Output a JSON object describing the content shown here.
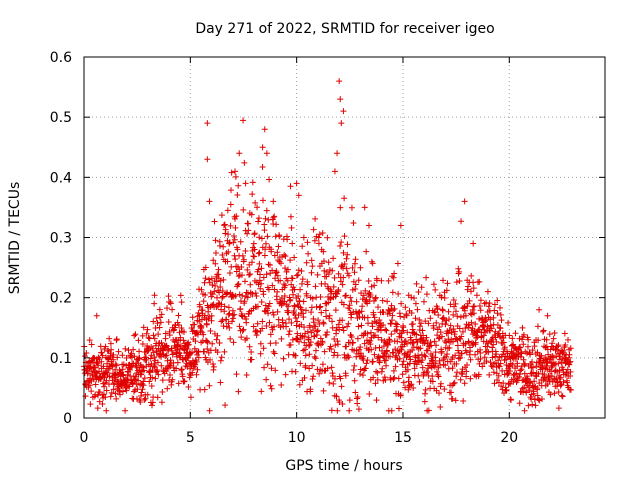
{
  "chart_data": {
    "type": "scatter",
    "title": "Day 271 of 2022, SRMTID for receiver igeo",
    "xlabel": "GPS time / hours",
    "ylabel": "SRMTID / TECUs",
    "xlim": [
      0,
      24.5
    ],
    "ylim": [
      0,
      0.6
    ],
    "xticks": [
      0,
      5,
      10,
      15,
      20
    ],
    "xtick_labels": [
      "0",
      "5",
      "10",
      "15",
      "20"
    ],
    "yticks": [
      0,
      0.1,
      0.2,
      0.3,
      0.4,
      0.5,
      0.6
    ],
    "ytick_labels": [
      "0",
      "0.1",
      "0.2",
      "0.3",
      "0.4",
      "0.5",
      "0.6"
    ],
    "grid": true,
    "marker": "+",
    "series": [
      {
        "name": "SRMTID",
        "color": "#e00000",
        "x_range": [
          0,
          22.9
        ],
        "envelope_hours": [
          0,
          1,
          2,
          3,
          4,
          5,
          6,
          7,
          8,
          9,
          10,
          11,
          12,
          13,
          14,
          15,
          16,
          17,
          18,
          19,
          20,
          21,
          22,
          23
        ],
        "envelope_center": [
          0.08,
          0.08,
          0.07,
          0.08,
          0.12,
          0.1,
          0.18,
          0.24,
          0.22,
          0.2,
          0.17,
          0.16,
          0.17,
          0.15,
          0.13,
          0.12,
          0.11,
          0.13,
          0.15,
          0.13,
          0.09,
          0.08,
          0.09,
          0.08
        ],
        "envelope_spread": [
          0.02,
          0.025,
          0.02,
          0.03,
          0.035,
          0.03,
          0.06,
          0.07,
          0.08,
          0.07,
          0.06,
          0.07,
          0.08,
          0.06,
          0.05,
          0.04,
          0.04,
          0.05,
          0.05,
          0.04,
          0.03,
          0.03,
          0.03,
          0.02
        ],
        "n_points": 2300,
        "highlights": [
          [
            0.6,
            0.17
          ],
          [
            3.3,
            0.19
          ],
          [
            5.8,
            0.49
          ],
          [
            5.8,
            0.43
          ],
          [
            5.9,
            0.36
          ],
          [
            7.1,
            0.41
          ],
          [
            7.3,
            0.44
          ],
          [
            7.6,
            0.39
          ],
          [
            8.4,
            0.45
          ],
          [
            8.5,
            0.48
          ],
          [
            8.6,
            0.44
          ],
          [
            8.9,
            0.36
          ],
          [
            10.0,
            0.39
          ],
          [
            10.1,
            0.37
          ],
          [
            11.9,
            0.44
          ],
          [
            12.0,
            0.56
          ],
          [
            12.05,
            0.53
          ],
          [
            12.1,
            0.49
          ],
          [
            12.2,
            0.51
          ],
          [
            11.8,
            0.41
          ],
          [
            13.2,
            0.35
          ],
          [
            13.4,
            0.32
          ],
          [
            14.9,
            0.32
          ],
          [
            17.9,
            0.36
          ],
          [
            18.3,
            0.29
          ],
          [
            21.4,
            0.18
          ],
          [
            21.8,
            0.17
          ]
        ]
      }
    ]
  }
}
